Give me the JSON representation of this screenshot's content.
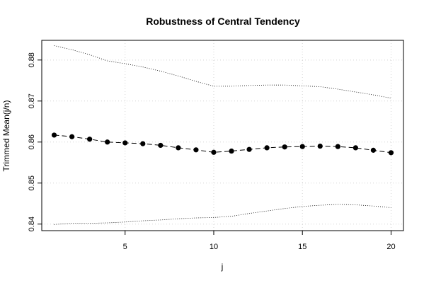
{
  "chart_data": {
    "type": "line",
    "title": "Robustness of Central Tendency",
    "xlabel": "j",
    "ylabel": "Trimmed Mean(j/n)",
    "xlim": [
      0.3,
      20.7
    ],
    "ylim": [
      0.8384,
      0.8848
    ],
    "x_ticks": [
      5,
      10,
      15,
      20
    ],
    "y_ticks": [
      0.84,
      0.85,
      0.86,
      0.87,
      0.88
    ],
    "x_tick_labels": [
      "5",
      "10",
      "15",
      "20"
    ],
    "y_tick_labels": [
      "0.84",
      "0.85",
      "0.86",
      "0.87",
      "0.88"
    ],
    "grid": true,
    "x": [
      1,
      2,
      3,
      4,
      5,
      6,
      7,
      8,
      9,
      10,
      11,
      12,
      13,
      14,
      15,
      16,
      17,
      18,
      19,
      20
    ],
    "series": [
      {
        "role": "mean",
        "style": "dashed line with filled points",
        "color": "#000000",
        "values": [
          0.8617,
          0.8613,
          0.8607,
          0.86,
          0.8598,
          0.8596,
          0.8592,
          0.8586,
          0.8581,
          0.8575,
          0.8578,
          0.8582,
          0.8586,
          0.8588,
          0.8589,
          0.859,
          0.8589,
          0.8586,
          0.858,
          0.8574
        ]
      },
      {
        "role": "upper bound",
        "style": "dotted line",
        "color": "#000000",
        "values": [
          0.8835,
          0.8825,
          0.8813,
          0.8798,
          0.8791,
          0.8783,
          0.8773,
          0.8761,
          0.8748,
          0.8736,
          0.8736,
          0.8738,
          0.8739,
          0.8739,
          0.8737,
          0.8735,
          0.8729,
          0.8722,
          0.8715,
          0.8707
        ]
      },
      {
        "role": "lower bound",
        "style": "dotted line",
        "color": "#000000",
        "values": [
          0.8399,
          0.8402,
          0.8402,
          0.8403,
          0.8405,
          0.8408,
          0.841,
          0.8413,
          0.8415,
          0.8416,
          0.8419,
          0.8426,
          0.8432,
          0.8438,
          0.8443,
          0.8446,
          0.8448,
          0.8447,
          0.8444,
          0.844
        ]
      }
    ]
  }
}
